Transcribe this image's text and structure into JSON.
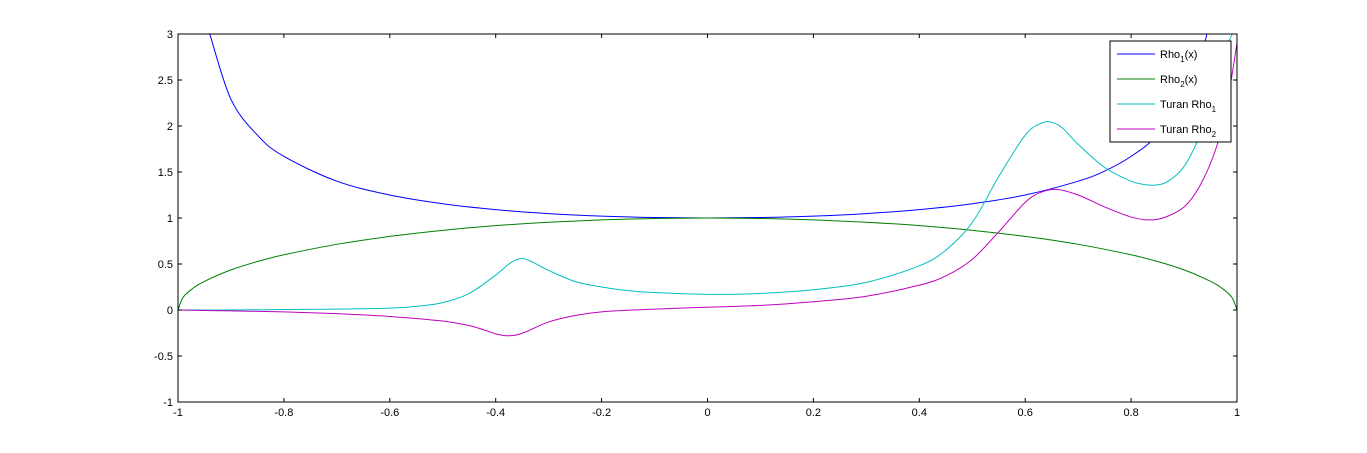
{
  "chart_data": {
    "type": "line",
    "title": "",
    "xlabel": "",
    "ylabel": "",
    "xlim": [
      -1,
      1
    ],
    "ylim": [
      -1,
      3
    ],
    "grid": false,
    "legend_position": "top-right",
    "x_ticks": [
      "-1",
      "-0.8",
      "-0.6",
      "-0.4",
      "-0.2",
      "0",
      "0.2",
      "0.4",
      "0.6",
      "0.8",
      "1"
    ],
    "y_ticks": [
      "-1",
      "-0.5",
      "0",
      "0.5",
      "1",
      "1.5",
      "2",
      "2.5",
      "3"
    ],
    "series": [
      {
        "name": "Rho_1(x)",
        "legend_base": "Rho",
        "legend_sub": "1",
        "legend_suffix": "(x)",
        "color": "#0000ff",
        "x": [
          -0.94,
          -0.9,
          -0.85,
          -0.8,
          -0.7,
          -0.6,
          -0.5,
          -0.4,
          -0.3,
          -0.2,
          -0.1,
          0,
          0.1,
          0.2,
          0.3,
          0.4,
          0.5,
          0.6,
          0.7,
          0.75,
          0.8,
          0.85,
          0.9,
          0.95,
          0.98
        ],
        "y": [
          3.0,
          2.29,
          1.9,
          1.67,
          1.4,
          1.25,
          1.155,
          1.091,
          1.048,
          1.02,
          1.005,
          1.0,
          1.005,
          1.02,
          1.048,
          1.091,
          1.155,
          1.25,
          1.4,
          1.51,
          1.67,
          1.9,
          2.29,
          3.2,
          5.0
        ]
      },
      {
        "name": "Rho_2(x)",
        "legend_base": "Rho",
        "legend_sub": "2",
        "legend_suffix": "(x)",
        "color": "#008000",
        "x": [
          -1,
          -0.99,
          -0.97,
          -0.95,
          -0.9,
          -0.85,
          -0.8,
          -0.7,
          -0.6,
          -0.5,
          -0.4,
          -0.3,
          -0.2,
          -0.1,
          0,
          0.1,
          0.2,
          0.3,
          0.4,
          0.5,
          0.6,
          0.7,
          0.8,
          0.85,
          0.9,
          0.95,
          0.97,
          0.99,
          1
        ],
        "y": [
          0,
          0.141,
          0.243,
          0.312,
          0.436,
          0.527,
          0.6,
          0.714,
          0.8,
          0.866,
          0.917,
          0.954,
          0.98,
          0.995,
          1.0,
          0.995,
          0.98,
          0.954,
          0.917,
          0.866,
          0.8,
          0.714,
          0.6,
          0.527,
          0.436,
          0.312,
          0.243,
          0.141,
          0
        ]
      },
      {
        "name": "Turan Rho_1",
        "legend_base": "Turan Rho",
        "legend_sub": "1",
        "legend_suffix": "",
        "color": "#00bfbf",
        "x": [
          -1,
          -0.9,
          -0.8,
          -0.7,
          -0.6,
          -0.55,
          -0.5,
          -0.45,
          -0.4,
          -0.37,
          -0.35,
          -0.33,
          -0.3,
          -0.25,
          -0.2,
          -0.15,
          -0.1,
          0,
          0.1,
          0.2,
          0.3,
          0.4,
          0.45,
          0.5,
          0.55,
          0.6,
          0.63,
          0.65,
          0.67,
          0.7,
          0.75,
          0.8,
          0.83,
          0.85,
          0.87,
          0.9,
          0.93,
          0.96,
          0.98,
          1
        ],
        "y": [
          0,
          0,
          0.005,
          0.01,
          0.02,
          0.04,
          0.08,
          0.18,
          0.38,
          0.52,
          0.56,
          0.52,
          0.43,
          0.31,
          0.25,
          0.21,
          0.19,
          0.17,
          0.18,
          0.22,
          0.3,
          0.48,
          0.65,
          0.95,
          1.45,
          1.9,
          2.03,
          2.04,
          1.98,
          1.8,
          1.55,
          1.4,
          1.36,
          1.36,
          1.4,
          1.56,
          1.9,
          2.4,
          2.85,
          3.1
        ]
      },
      {
        "name": "Turan Rho_2",
        "legend_base": "Turan Rho",
        "legend_sub": "2",
        "legend_suffix": "",
        "color": "#bf00bf",
        "x": [
          -1,
          -0.9,
          -0.8,
          -0.7,
          -0.6,
          -0.5,
          -0.45,
          -0.42,
          -0.4,
          -0.38,
          -0.36,
          -0.34,
          -0.3,
          -0.25,
          -0.2,
          -0.1,
          0,
          0.1,
          0.2,
          0.3,
          0.4,
          0.45,
          0.5,
          0.55,
          0.6,
          0.63,
          0.66,
          0.7,
          0.75,
          0.8,
          0.83,
          0.86,
          0.9,
          0.93,
          0.96,
          0.98,
          1
        ],
        "y": [
          0,
          -0.01,
          -0.02,
          -0.04,
          -0.07,
          -0.12,
          -0.17,
          -0.22,
          -0.26,
          -0.28,
          -0.27,
          -0.23,
          -0.13,
          -0.06,
          -0.02,
          0.01,
          0.03,
          0.05,
          0.09,
          0.15,
          0.27,
          0.37,
          0.55,
          0.85,
          1.17,
          1.28,
          1.31,
          1.25,
          1.12,
          1.01,
          0.98,
          1.0,
          1.12,
          1.35,
          1.75,
          2.2,
          2.9
        ]
      }
    ]
  }
}
